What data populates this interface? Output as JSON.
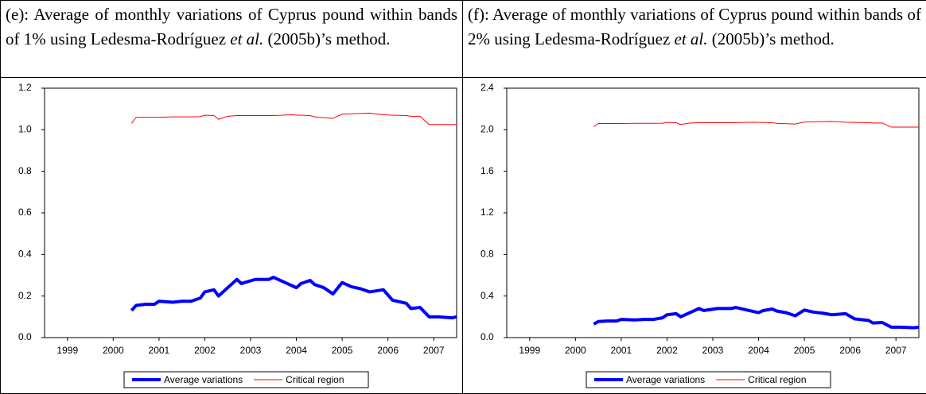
{
  "chart_data": [
    {
      "type": "line",
      "title": [
        "(e): Average of monthly variations of Cyprus pound within bands of 1% using Ledesma-Rodríguez ",
        "et al.",
        " (2005b)’s method."
      ],
      "x": [
        2000.9,
        2001.0,
        2001.2,
        2001.4,
        2001.5,
        2001.8,
        2002.0,
        2002.2,
        2002.4,
        2002.5,
        2002.7,
        2002.8,
        2003.0,
        2003.2,
        2003.3,
        2003.6,
        2003.9,
        2004.0,
        2004.2,
        2004.4,
        2004.5,
        2004.6,
        2004.8,
        2004.9,
        2005.1,
        2005.3,
        2005.5,
        2005.7,
        2005.9,
        2006.1,
        2006.4,
        2006.6,
        2006.9,
        2007.0,
        2007.2,
        2007.4,
        2007.6,
        2007.9,
        2008.0
      ],
      "series": [
        {
          "name": "Average variations",
          "color": "#0000ff",
          "values": [
            0.13,
            0.155,
            0.16,
            0.16,
            0.175,
            0.17,
            0.175,
            0.175,
            0.19,
            0.22,
            0.23,
            0.2,
            0.24,
            0.28,
            0.26,
            0.28,
            0.28,
            0.29,
            0.27,
            0.25,
            0.24,
            0.26,
            0.275,
            0.255,
            0.24,
            0.21,
            0.265,
            0.245,
            0.235,
            0.22,
            0.23,
            0.18,
            0.165,
            0.14,
            0.145,
            0.1,
            0.1,
            0.095,
            0.1
          ]
        },
        {
          "name": "Critical region",
          "color": "#ff0000",
          "values": [
            1.03,
            1.06,
            1.06,
            1.06,
            1.06,
            1.062,
            1.062,
            1.062,
            1.063,
            1.07,
            1.068,
            1.05,
            1.065,
            1.068,
            1.068,
            1.068,
            1.068,
            1.068,
            1.07,
            1.072,
            1.07,
            1.07,
            1.068,
            1.062,
            1.058,
            1.055,
            1.075,
            1.077,
            1.078,
            1.08,
            1.072,
            1.07,
            1.068,
            1.065,
            1.065,
            1.025,
            1.025,
            1.025,
            1.025
          ]
        }
      ],
      "xlim": [
        1999,
        2008
      ],
      "xticks": [
        {
          "value": 1999.5,
          "label": "1999"
        },
        {
          "value": 2000.5,
          "label": "2000"
        },
        {
          "value": 2001.5,
          "label": "2001"
        },
        {
          "value": 2002.5,
          "label": "2002"
        },
        {
          "value": 2003.5,
          "label": "2003"
        },
        {
          "value": 2004.5,
          "label": "2004"
        },
        {
          "value": 2005.5,
          "label": "2005"
        },
        {
          "value": 2006.5,
          "label": "2006"
        },
        {
          "value": 2007.5,
          "label": "2007"
        }
      ],
      "ylim": [
        0,
        1.2
      ],
      "yticks": [
        {
          "value": 0,
          "label": "0.0"
        },
        0.2,
        0.4,
        0.6,
        0.8,
        {
          "value": 1,
          "label": "1.0"
        },
        1.2
      ]
    },
    {
      "type": "line",
      "title": [
        "(f): Average of monthly variations of Cyprus pound within bands of 2% using Ledesma-Rodríguez ",
        "et al.",
        " (2005b)’s method."
      ],
      "x": [
        2000.9,
        2001.0,
        2001.2,
        2001.4,
        2001.5,
        2001.8,
        2002.0,
        2002.2,
        2002.4,
        2002.5,
        2002.7,
        2002.8,
        2003.0,
        2003.2,
        2003.3,
        2003.6,
        2003.9,
        2004.0,
        2004.2,
        2004.4,
        2004.5,
        2004.6,
        2004.8,
        2004.9,
        2005.1,
        2005.3,
        2005.5,
        2005.7,
        2005.9,
        2006.1,
        2006.4,
        2006.6,
        2006.9,
        2007.0,
        2007.2,
        2007.4,
        2007.6,
        2007.9,
        2008.0
      ],
      "series": [
        {
          "name": "Average variations",
          "color": "#0000ff",
          "values": [
            0.13,
            0.155,
            0.16,
            0.16,
            0.175,
            0.17,
            0.175,
            0.175,
            0.19,
            0.22,
            0.23,
            0.2,
            0.24,
            0.28,
            0.26,
            0.28,
            0.28,
            0.29,
            0.27,
            0.25,
            0.24,
            0.26,
            0.275,
            0.255,
            0.24,
            0.21,
            0.265,
            0.245,
            0.235,
            0.22,
            0.23,
            0.18,
            0.165,
            0.14,
            0.145,
            0.1,
            0.1,
            0.095,
            0.1
          ]
        },
        {
          "name": "Critical region",
          "color": "#ff0000",
          "values": [
            2.03,
            2.06,
            2.06,
            2.06,
            2.06,
            2.062,
            2.062,
            2.062,
            2.063,
            2.07,
            2.068,
            2.05,
            2.065,
            2.068,
            2.068,
            2.068,
            2.068,
            2.068,
            2.07,
            2.072,
            2.07,
            2.07,
            2.068,
            2.062,
            2.058,
            2.055,
            2.075,
            2.077,
            2.078,
            2.08,
            2.072,
            2.07,
            2.068,
            2.065,
            2.065,
            2.025,
            2.025,
            2.025,
            2.025
          ]
        }
      ],
      "xlim": [
        1999,
        2008
      ],
      "xticks": [
        {
          "value": 1999.5,
          "label": "1999"
        },
        {
          "value": 2000.5,
          "label": "2000"
        },
        {
          "value": 2001.5,
          "label": "2001"
        },
        {
          "value": 2002.5,
          "label": "2002"
        },
        {
          "value": 2003.5,
          "label": "2003"
        },
        {
          "value": 2004.5,
          "label": "2004"
        },
        {
          "value": 2005.5,
          "label": "2005"
        },
        {
          "value": 2006.5,
          "label": "2006"
        },
        {
          "value": 2007.5,
          "label": "2007"
        }
      ],
      "ylim": [
        0,
        2.4
      ],
      "yticks": [
        {
          "value": 0,
          "label": "0.0"
        },
        0.4,
        0.8,
        1.2,
        1.6,
        {
          "value": 2,
          "label": "2.0"
        },
        2.4
      ]
    }
  ]
}
